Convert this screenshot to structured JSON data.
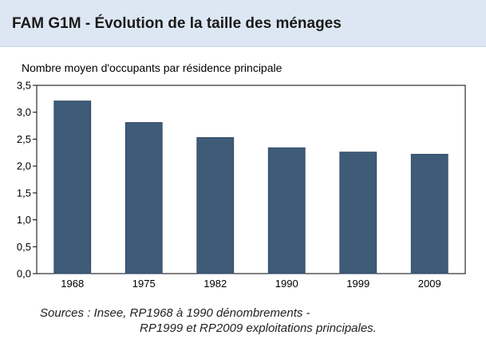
{
  "header": {
    "title": "FAM G1M - Évolution de la taille des ménages"
  },
  "chart_data": {
    "type": "bar",
    "title": "FAM G1M - Évolution de la taille des ménages",
    "ylabel": "Nombre moyen d'occupants par résidence principale",
    "xlabel": "",
    "categories": [
      "1968",
      "1975",
      "1982",
      "1990",
      "1999",
      "2009"
    ],
    "values": [
      3.21,
      2.81,
      2.53,
      2.34,
      2.26,
      2.22
    ],
    "ylim": [
      0,
      3.5
    ],
    "yticks": [
      "0,0",
      "0,5",
      "1,0",
      "1,5",
      "2,0",
      "2,5",
      "3,0",
      "3,5"
    ],
    "grid": false,
    "bar_color": "#3e5b78"
  },
  "footer": {
    "source_line1": "Sources : Insee, RP1968 à 1990 dénombrements -",
    "source_line2": "RP1999 et RP2009 exploitations principales."
  }
}
